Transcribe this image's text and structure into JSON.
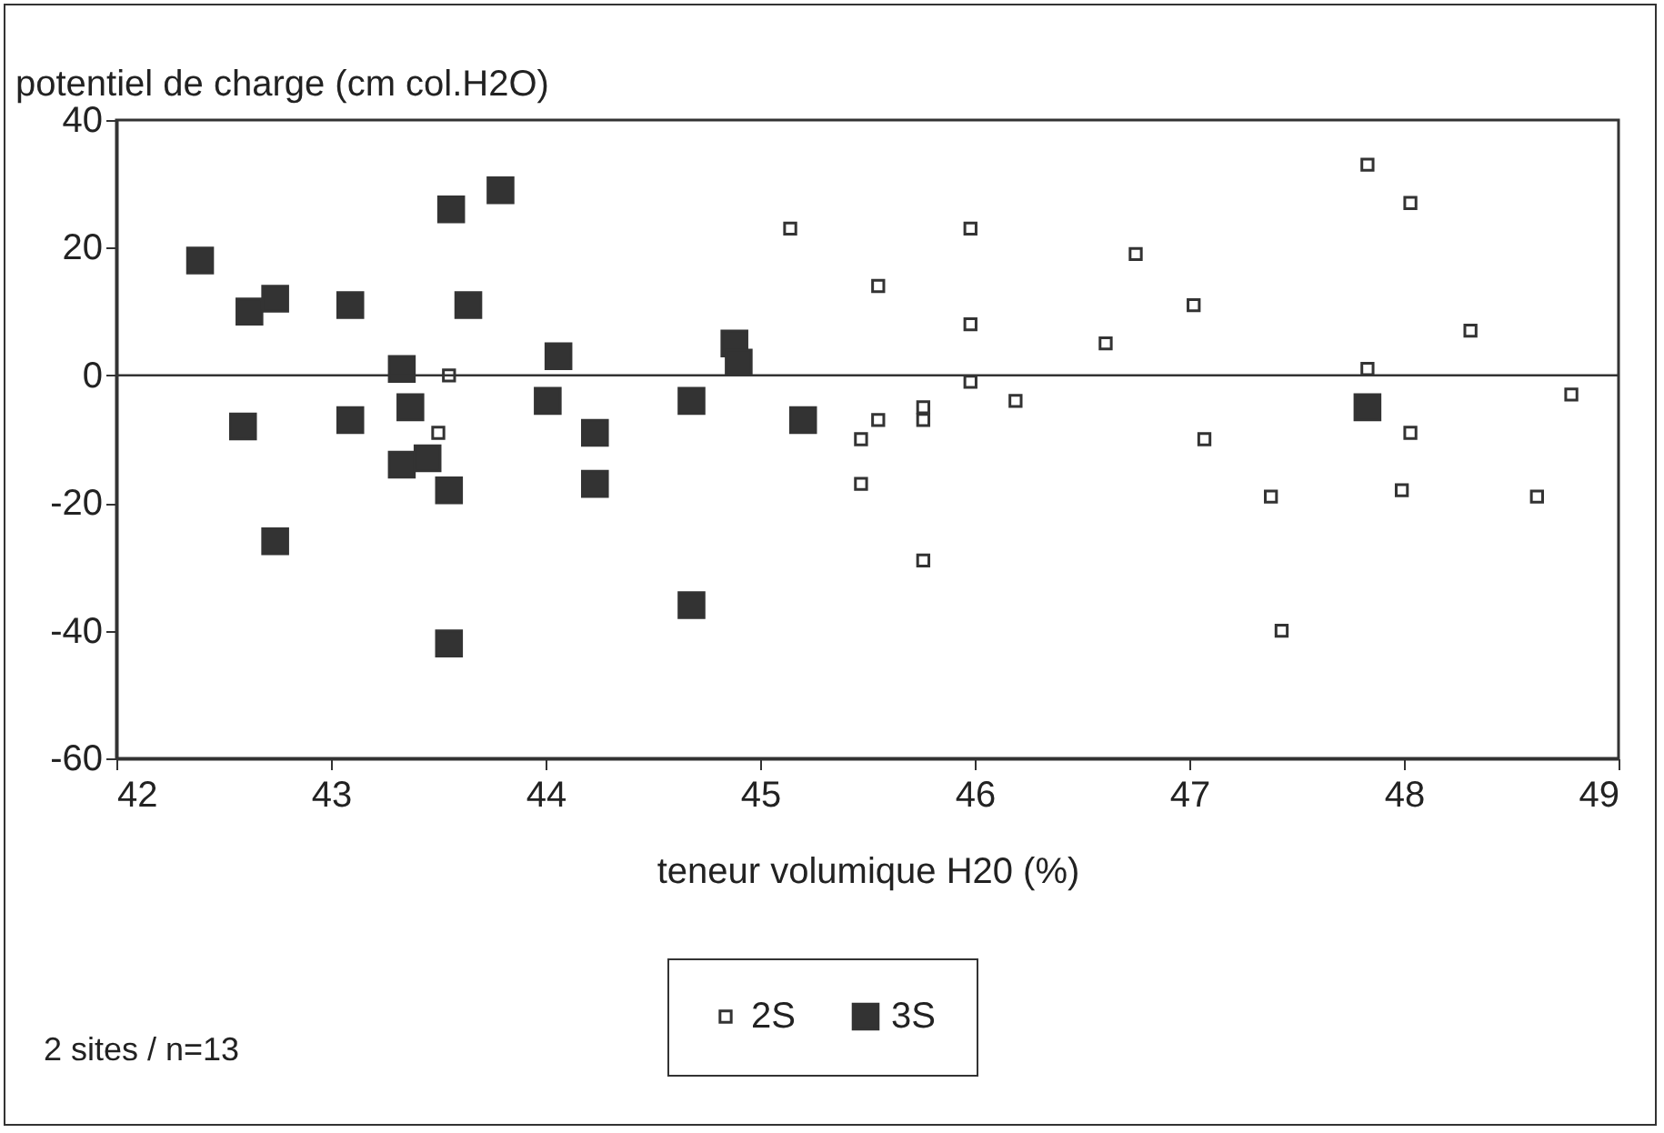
{
  "chart_data": {
    "type": "scatter",
    "xlabel": "teneur volumique H20 (%)",
    "ylabel": "potentiel de charge (cm col.H2O)",
    "xlim": [
      42,
      49
    ],
    "xticks": [
      42,
      43,
      44,
      45,
      46,
      47,
      48,
      49
    ],
    "ylim": [
      -60,
      40
    ],
    "yticks": [
      -60,
      -40,
      -20,
      0,
      20,
      40
    ],
    "grid": false,
    "legend": "bottom",
    "marker": "square",
    "ref_lines": [
      {
        "axis": "y",
        "value": 0,
        "color": "#333333"
      }
    ],
    "annotations": [
      "2 sites / n=13"
    ],
    "series": [
      {
        "name": "2S",
        "color": "#333333",
        "x": [
          43.55,
          43.5,
          45.14,
          45.47,
          45.47,
          45.55,
          45.55,
          45.76,
          45.76,
          45.76,
          45.98,
          45.98,
          45.98,
          46.19,
          46.61,
          46.75,
          47.02,
          47.07,
          47.38,
          47.43,
          47.83,
          47.83,
          48.03,
          48.03,
          47.99,
          48.31,
          48.78,
          48.62
        ],
        "values": [
          0,
          -9,
          23,
          -10,
          -17,
          14,
          -7,
          -5,
          -7,
          -29,
          23,
          8,
          -1,
          -4,
          5,
          19,
          11,
          -10,
          -19,
          -40,
          33,
          1,
          27,
          -9,
          -18,
          7,
          -3,
          -19
        ]
      },
      {
        "name": "3S",
        "color": "#333333",
        "x": [
          42.39,
          42.62,
          42.74,
          42.59,
          42.74,
          43.09,
          43.09,
          43.33,
          43.37,
          43.33,
          43.45,
          43.56,
          43.55,
          43.55,
          43.64,
          43.79,
          44.01,
          44.06,
          44.23,
          44.23,
          44.68,
          44.68,
          44.88,
          44.9,
          45.2,
          47.83
        ],
        "values": [
          18,
          10,
          12,
          -8,
          -26,
          11,
          -7,
          1,
          -5,
          -14,
          -13,
          26,
          -18,
          -42,
          11,
          29,
          -4,
          3,
          -9,
          -17,
          -4,
          -36,
          5,
          2,
          -7,
          -5
        ]
      }
    ]
  }
}
